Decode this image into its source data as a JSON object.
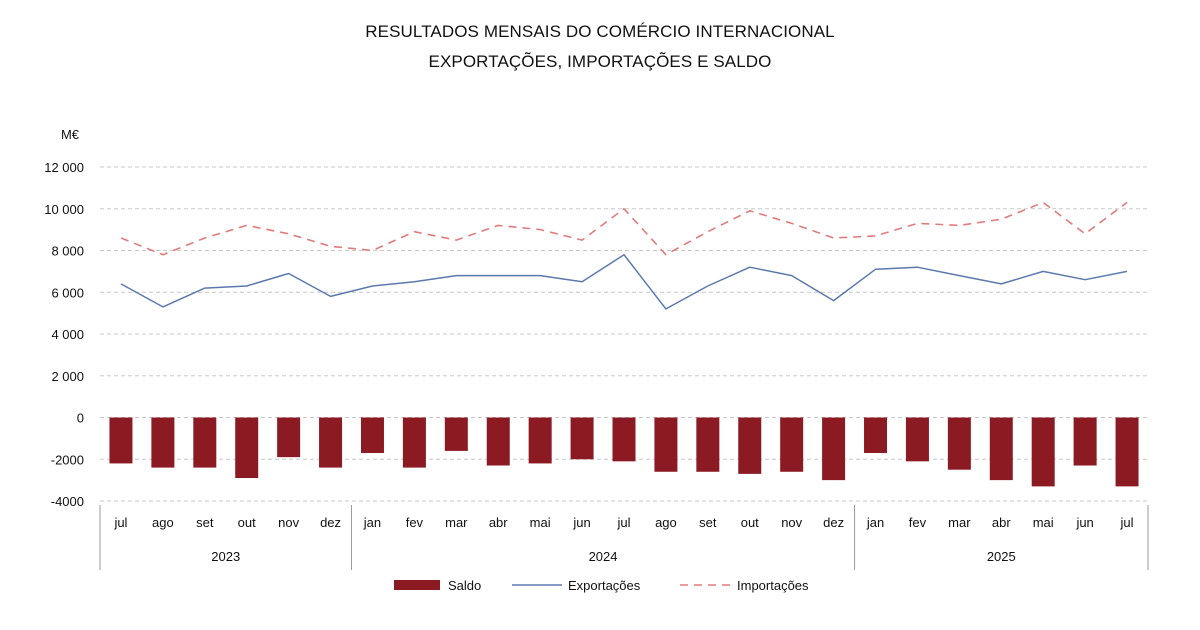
{
  "chart_data": {
    "type": "bar",
    "title": "RESULTADOS MENSAIS DO COMÉRCIO INTERNACIONAL",
    "subtitle": "EXPORTAÇÕES, IMPORTAÇÕES E SALDO",
    "unit": "M€",
    "ylim": [
      -4000,
      12000
    ],
    "y_ticks": [
      12000,
      10000,
      8000,
      6000,
      4000,
      2000,
      0,
      -2000,
      -4000
    ],
    "y_tick_labels": [
      "12 000",
      "10 000",
      "8 000",
      "6 000",
      "4 000",
      "2 000",
      "0",
      "-2000",
      "-4000"
    ],
    "grid": true,
    "legend_position": "bottom",
    "categories": [
      "jul",
      "ago",
      "set",
      "out",
      "nov",
      "dez",
      "jan",
      "fev",
      "mar",
      "abr",
      "mai",
      "jun",
      "jul",
      "ago",
      "set",
      "out",
      "nov",
      "dez",
      "jan",
      "fev",
      "mar",
      "abr",
      "mai",
      "jun",
      "jul"
    ],
    "year_groups": [
      {
        "label": "2023",
        "count": 6
      },
      {
        "label": "2024",
        "count": 12
      },
      {
        "label": "2025",
        "count": 7
      }
    ],
    "series": [
      {
        "name": "Saldo",
        "kind": "bar",
        "color": "#8b1a23",
        "values": [
          -2200,
          -2400,
          -2400,
          -2900,
          -1900,
          -2400,
          -1700,
          -2400,
          -1600,
          -2300,
          -2200,
          -2000,
          -2100,
          -2600,
          -2600,
          -2700,
          -2600,
          -3000,
          -1700,
          -2100,
          -2500,
          -3000,
          -3300,
          -2300,
          -3300
        ]
      },
      {
        "name": "Exportações",
        "kind": "line",
        "color": "#5b79ad",
        "values": [
          6400,
          5300,
          6200,
          6300,
          6900,
          5800,
          6300,
          6500,
          6800,
          6800,
          6800,
          6500,
          7800,
          5200,
          6300,
          7200,
          6800,
          5600,
          7100,
          7200,
          6800,
          6400,
          7000,
          6600,
          7000
        ]
      },
      {
        "name": "Importações",
        "kind": "dashed-line",
        "color": "#e07c7c",
        "values": [
          8600,
          7800,
          8600,
          9200,
          8800,
          8200,
          8000,
          8900,
          8500,
          9200,
          9000,
          8500,
          10000,
          7800,
          8900,
          9900,
          9300,
          8600,
          8700,
          9300,
          9200,
          9500,
          10300,
          8800,
          10300
        ]
      }
    ]
  }
}
